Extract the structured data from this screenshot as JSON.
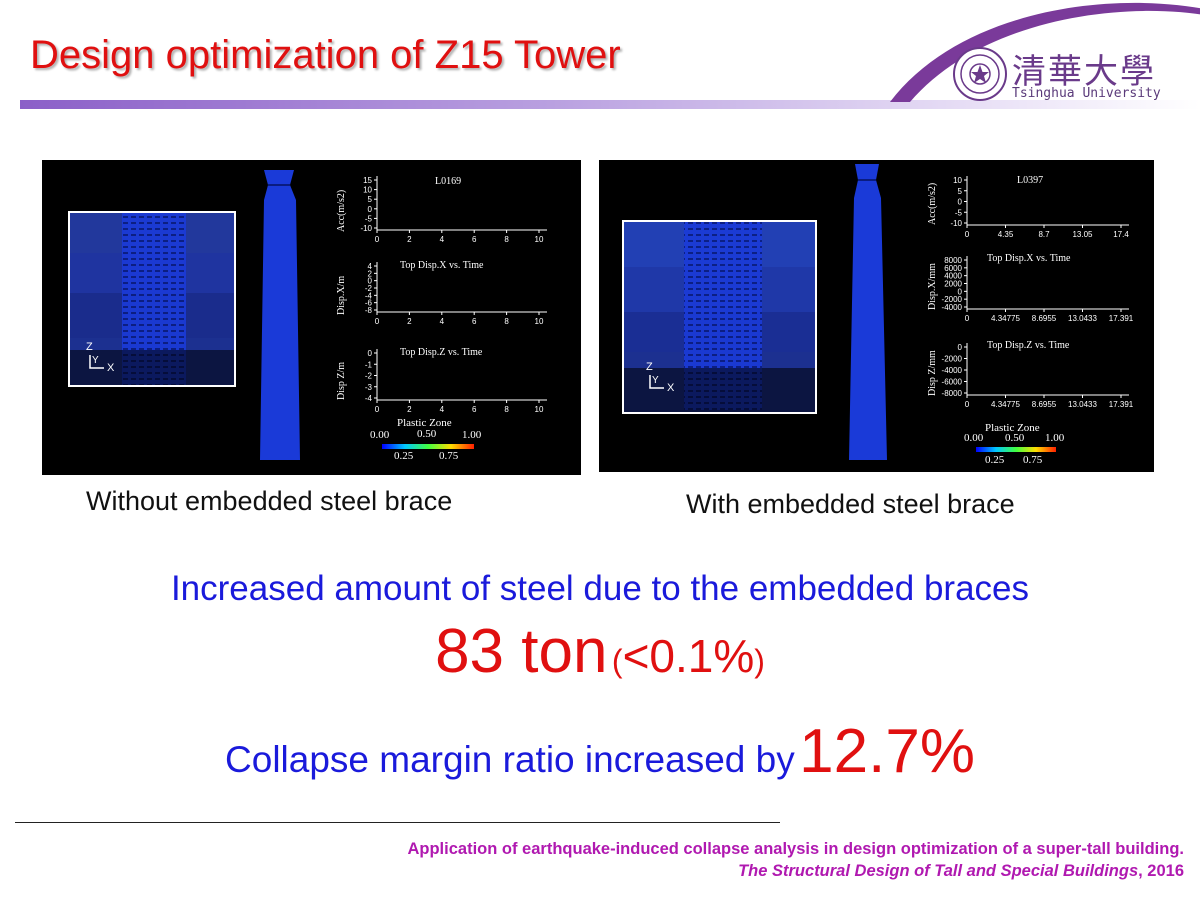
{
  "slide": {
    "title": "Design optimization of Z15 Tower"
  },
  "logo": {
    "name_cn": "清華大學",
    "name_en": "Tsinghua University"
  },
  "panels": [
    {
      "caption": "Without embedded steel brace",
      "record_label": "L0169",
      "acc": {
        "ylabel": "Acc(m/s2)",
        "yticks": [
          "15",
          "10",
          "5",
          "0",
          "-5",
          "-10"
        ],
        "xticks": [
          "0",
          "2",
          "4",
          "6",
          "8",
          "10"
        ]
      },
      "dispx": {
        "title": "Top Disp.X vs. Time",
        "ylabel": "Disp.X/m",
        "yticks": [
          "4",
          "2",
          "0",
          "-2",
          "-4",
          "-6",
          "-8"
        ],
        "xticks": [
          "0",
          "2",
          "4",
          "6",
          "8",
          "10"
        ]
      },
      "dispz": {
        "title": "Top Disp.Z vs. Time",
        "ylabel": "Disp Z/m",
        "yticks": [
          "0",
          "-1",
          "-2",
          "-3",
          "-4"
        ],
        "xticks": [
          "0",
          "2",
          "4",
          "6",
          "8",
          "10"
        ]
      },
      "legend": {
        "title": "Plastic Zone",
        "top": [
          "0.00",
          "0.50",
          "1.00"
        ],
        "bottom": [
          "0.25",
          "0.75"
        ]
      },
      "axes_labels": {
        "z": "Z",
        "y": "Y",
        "x": "X"
      }
    },
    {
      "caption": "With embedded steel brace",
      "record_label": "L0397",
      "acc": {
        "ylabel": "Acc(m/s2)",
        "yticks": [
          "10",
          "5",
          "0",
          "-5",
          "-10"
        ],
        "xticks": [
          "0",
          "4.35",
          "8.7",
          "13.05",
          "17.4"
        ]
      },
      "dispx": {
        "title": "Top Disp.X vs. Time",
        "ylabel": "Disp.X/mm",
        "yticks": [
          "8000",
          "6000",
          "4000",
          "2000",
          "0",
          "-2000",
          "-4000"
        ],
        "xticks": [
          "0",
          "4.34775",
          "8.6955",
          "13.0433",
          "17.391"
        ]
      },
      "dispz": {
        "title": "Top Disp.Z vs. Time",
        "ylabel": "Disp Z/mm",
        "yticks": [
          "0",
          "-2000",
          "-4000",
          "-6000",
          "-8000"
        ],
        "xticks": [
          "0",
          "4.34775",
          "8.6955",
          "13.0433",
          "17.391"
        ]
      },
      "legend": {
        "title": "Plastic Zone",
        "top": [
          "0.00",
          "0.50",
          "1.00"
        ],
        "bottom": [
          "0.25",
          "0.75"
        ]
      },
      "axes_labels": {
        "z": "Z",
        "y": "Y",
        "x": "X"
      }
    }
  ],
  "result": {
    "line1": "Increased amount of steel due to the embedded braces",
    "amount": "83 ton",
    "paren_open": "(",
    "percent": "<0.1%",
    "paren_close": ")",
    "line3_text": "Collapse margin ratio increased by",
    "line3_value": "12.7%"
  },
  "reference": {
    "line1": "Application of earthquake-induced collapse analysis in design optimization of a super-tall building.",
    "journal": "The Structural Design of Tall and Special Buildings",
    "year": ", 2016"
  },
  "colors": {
    "title_red": "#e01010",
    "body_blue": "#1a1adb",
    "ref_purple": "#b019b0",
    "model_blue": "#1a3ad8"
  }
}
